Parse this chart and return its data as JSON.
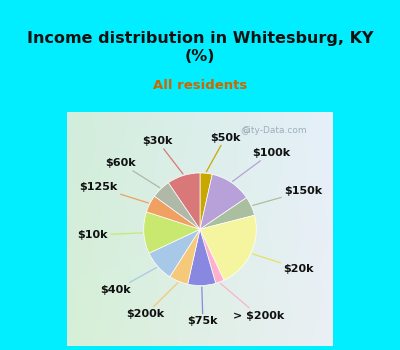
{
  "title": "Income distribution in Whitesburg, KY\n(%)",
  "subtitle": "All residents",
  "title_color": "#111111",
  "subtitle_color": "#cc6600",
  "bg_cyan": "#00eeff",
  "bg_chart_tl": "#d0ede0",
  "bg_chart_tr": "#e8f0f8",
  "bg_chart_br": "#f5f0f8",
  "bg_chart_bl": "#d8edd8",
  "watermark": "City-Data.com",
  "labels": [
    "$50k",
    "$100k",
    "$150k",
    "$20k",
    "> $200k",
    "$75k",
    "$200k",
    "$40k",
    "$10k",
    "$125k",
    "$60k",
    "$30k"
  ],
  "values": [
    3.5,
    12.0,
    5.5,
    22.0,
    2.5,
    8.0,
    5.5,
    9.0,
    12.0,
    5.0,
    5.5,
    9.5
  ],
  "colors": [
    "#c8a800",
    "#b8a0d8",
    "#aabfa0",
    "#f5f5a0",
    "#ffb0cc",
    "#8888e0",
    "#f5c87a",
    "#a8c8e8",
    "#c8e870",
    "#f0a060",
    "#b0b8a8",
    "#d87878"
  ],
  "line_colors": [
    "#c8a800",
    "#b8a0d8",
    "#aabfa0",
    "#e8e060",
    "#ffb0cc",
    "#8888e0",
    "#f5c878",
    "#a8c8e8",
    "#c8e870",
    "#f0a060",
    "#b0b8a8",
    "#d87878"
  ],
  "label_fontsize": 8,
  "figsize": [
    4.0,
    3.5
  ],
  "dpi": 100
}
